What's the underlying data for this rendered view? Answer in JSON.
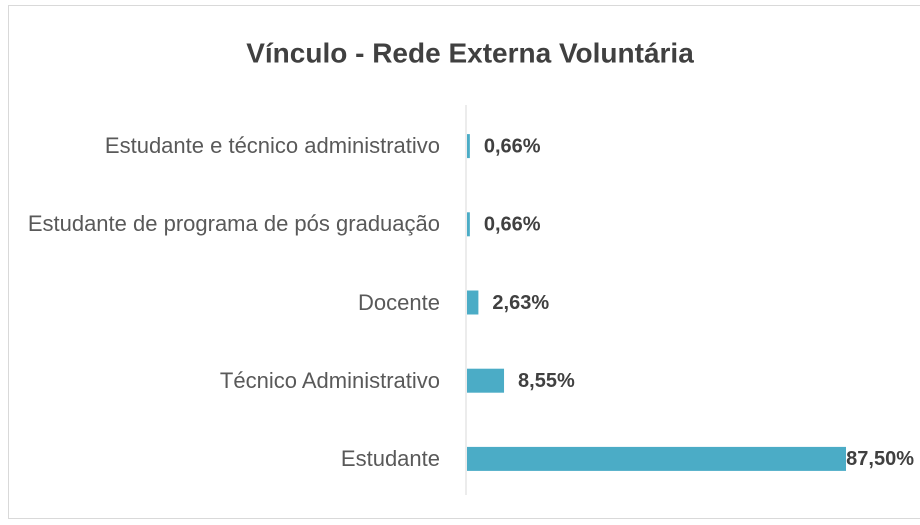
{
  "chart_data": {
    "type": "bar",
    "orientation": "horizontal",
    "title": "Vínculo - Rede Externa Voluntária",
    "categories": [
      "Estudante e técnico administrativo",
      "Estudante de programa de pós graduação",
      "Docente",
      "Técnico Administrativo",
      "Estudante"
    ],
    "values": [
      0.66,
      0.66,
      2.63,
      8.55,
      87.5
    ],
    "value_labels": [
      "0,66%",
      "0,66%",
      "2,63%",
      "8,55%",
      "87,50%"
    ],
    "color": "#4bacc6"
  }
}
